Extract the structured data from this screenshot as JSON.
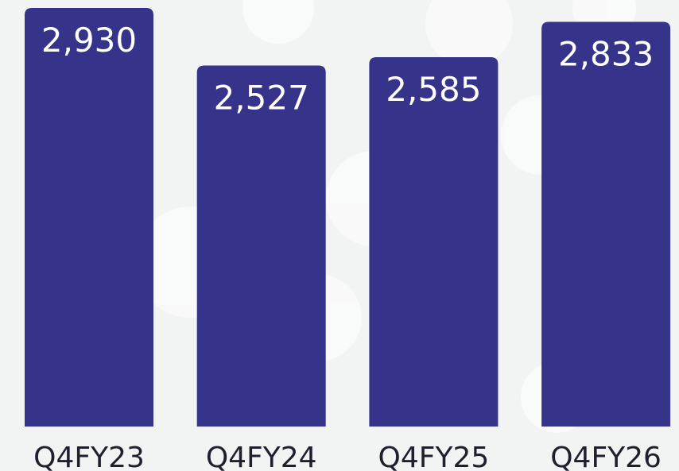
{
  "chart_data": {
    "type": "bar",
    "categories": [
      "Q4FY23",
      "Q4FY24",
      "Q4FY25",
      "Q4FY26"
    ],
    "values": [
      2930,
      2527,
      2585,
      2833
    ],
    "value_labels": [
      "2,930",
      "2,527",
      "2,585",
      "2,833"
    ],
    "color": "#35348a"
  }
}
